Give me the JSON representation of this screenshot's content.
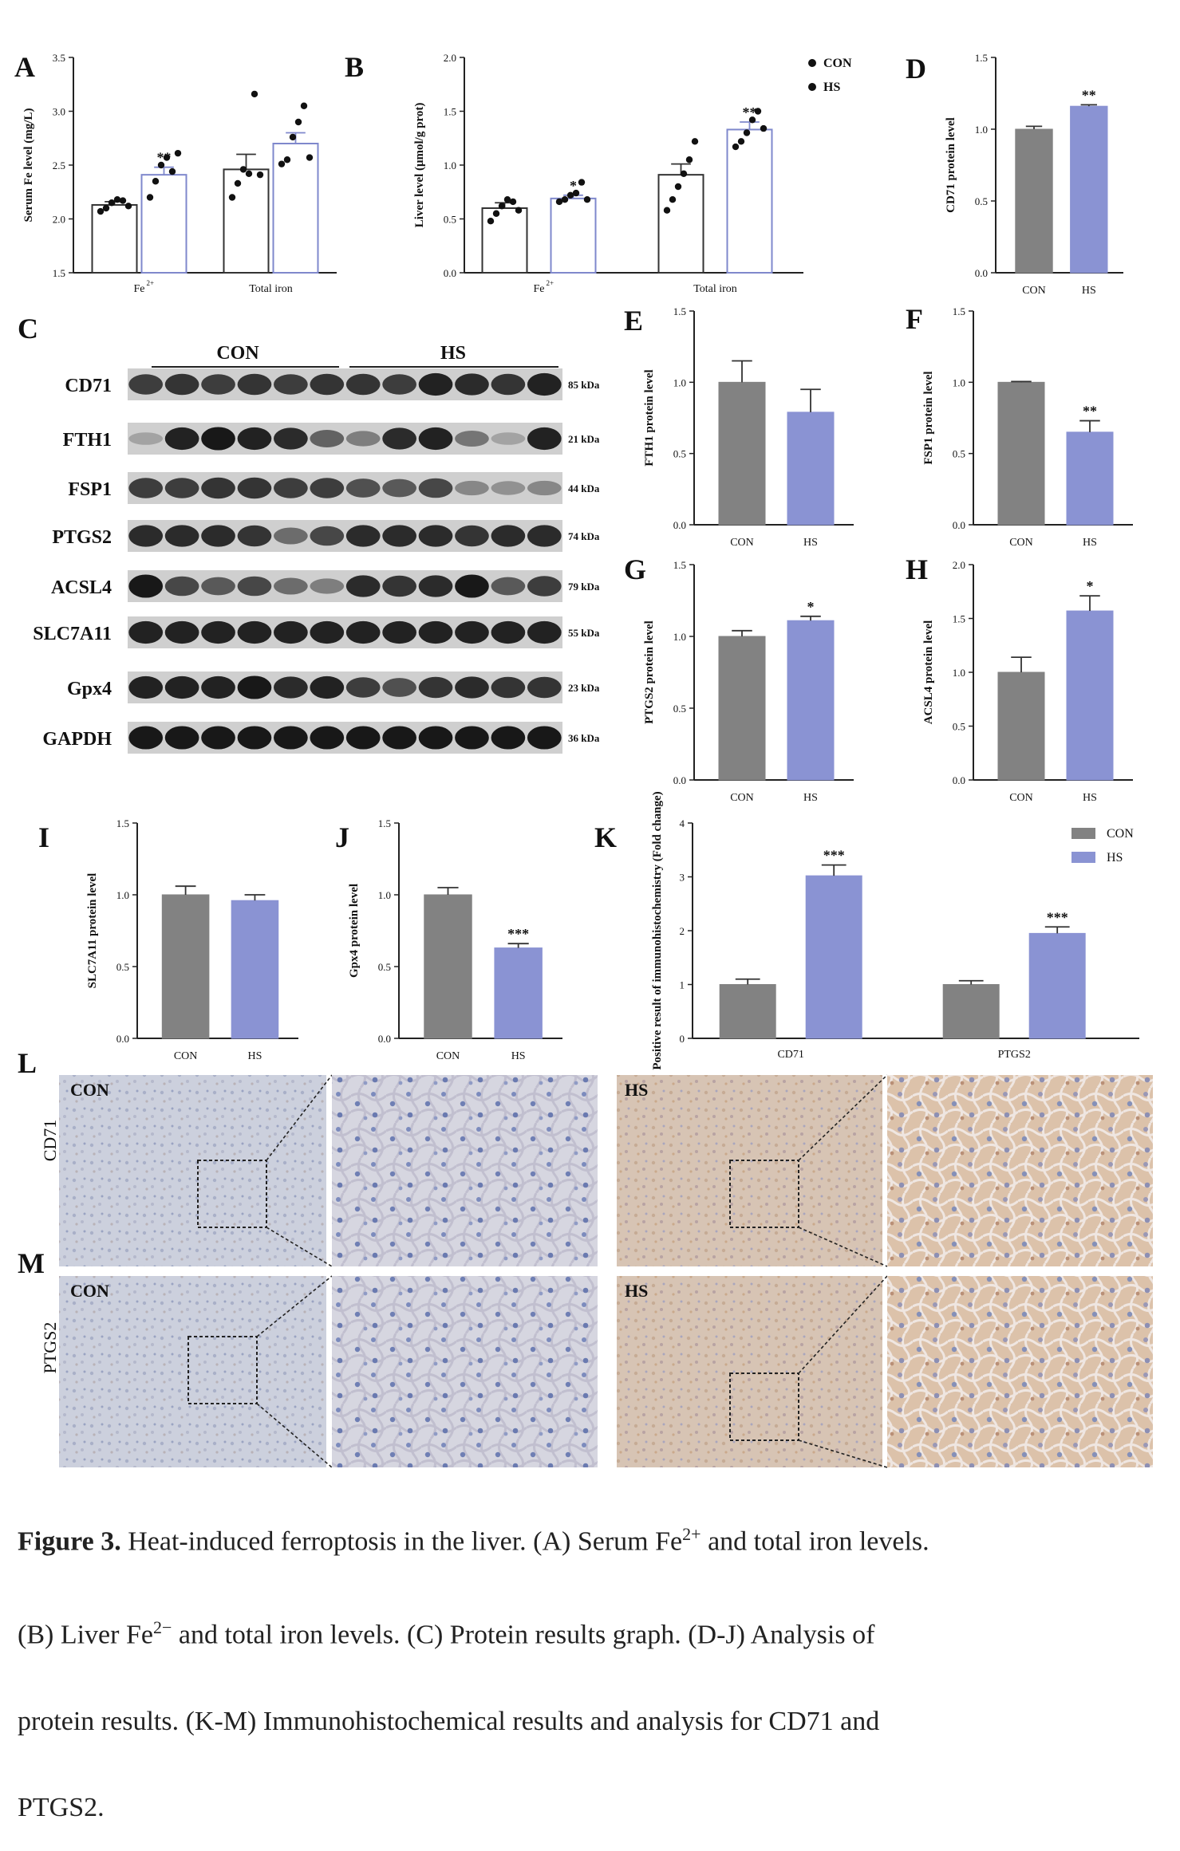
{
  "colors": {
    "con": "#828282",
    "hs": "#8a93d3",
    "hs_edge": "#7f88cc",
    "axis": "#222222"
  },
  "chart_data": [
    {
      "panel": "A",
      "type": "bar",
      "categories": [
        "Fe2+",
        "Total iron"
      ],
      "ylabel": "Serum Fe level (mg/L)",
      "ylim": [
        1.5,
        3.5
      ],
      "yticks": [
        1.5,
        2.0,
        2.5,
        3.0,
        3.5
      ],
      "series": [
        {
          "name": "CON",
          "values": [
            2.13,
            2.46
          ],
          "sem": [
            0.03,
            0.14
          ],
          "points": [
            [
              2.07,
              2.1,
              2.15,
              2.18,
              2.17,
              2.12
            ],
            [
              2.2,
              2.33,
              2.46,
              2.42,
              3.16,
              2.41
            ]
          ]
        },
        {
          "name": "HS",
          "values": [
            2.41,
            2.7
          ],
          "sem": [
            0.07,
            0.1
          ],
          "points": [
            [
              2.2,
              2.35,
              2.5,
              2.57,
              2.44,
              2.61
            ],
            [
              2.51,
              2.55,
              2.76,
              2.9,
              3.05,
              2.57
            ]
          ]
        }
      ],
      "annotations": [
        {
          "series": "HS",
          "category": "Fe2+",
          "text": "**"
        }
      ]
    },
    {
      "panel": "B",
      "type": "bar",
      "categories": [
        "Fe2+",
        "Total iron"
      ],
      "ylabel": "Liver level (μmol/g prot)",
      "ylim": [
        0,
        2.0
      ],
      "yticks": [
        0.0,
        0.5,
        1.0,
        1.5,
        2.0
      ],
      "legend": [
        "CON",
        "HS"
      ],
      "legend_position": "top-right",
      "series": [
        {
          "name": "CON",
          "values": [
            0.6,
            0.91
          ],
          "sem": [
            0.05,
            0.1
          ],
          "points": [
            [
              0.48,
              0.55,
              0.62,
              0.68,
              0.66,
              0.58
            ],
            [
              0.58,
              0.68,
              0.8,
              0.92,
              1.05,
              1.22
            ]
          ]
        },
        {
          "name": "HS",
          "values": [
            0.69,
            1.33
          ],
          "sem": [
            0.03,
            0.07
          ],
          "points": [
            [
              0.66,
              0.68,
              0.72,
              0.74,
              0.84,
              0.68
            ],
            [
              1.17,
              1.22,
              1.3,
              1.42,
              1.5,
              1.34
            ]
          ]
        }
      ],
      "annotations": [
        {
          "series": "HS",
          "category": "Fe2+",
          "text": "*"
        },
        {
          "series": "HS",
          "category": "Total iron",
          "text": "**"
        }
      ]
    },
    {
      "panel": "D",
      "type": "bar",
      "categories": [
        "CON",
        "HS"
      ],
      "ylabel": "CD71 protein level",
      "ylim": [
        0,
        1.5
      ],
      "yticks": [
        0.0,
        0.5,
        1.0,
        1.5
      ],
      "values": [
        1.0,
        1.16
      ],
      "sem": [
        0.02,
        0.01
      ],
      "annotations": [
        "",
        "**"
      ]
    },
    {
      "panel": "E",
      "type": "bar",
      "categories": [
        "CON",
        "HS"
      ],
      "ylabel": "FTH1 protein level",
      "ylim": [
        0,
        1.5
      ],
      "yticks": [
        0.0,
        0.5,
        1.0,
        1.5
      ],
      "values": [
        1.0,
        0.79
      ],
      "sem": [
        0.15,
        0.16
      ],
      "annotations": [
        "",
        ""
      ]
    },
    {
      "panel": "F",
      "type": "bar",
      "categories": [
        "CON",
        "HS"
      ],
      "ylabel": "FSP1 protein level",
      "ylim": [
        0,
        1.5
      ],
      "yticks": [
        0.0,
        0.5,
        1.0,
        1.5
      ],
      "values": [
        1.0,
        0.65
      ],
      "sem": [
        0.005,
        0.08
      ],
      "annotations": [
        "",
        "**"
      ]
    },
    {
      "panel": "G",
      "type": "bar",
      "categories": [
        "CON",
        "HS"
      ],
      "ylabel": "PTGS2 protein level",
      "ylim": [
        0,
        1.5
      ],
      "yticks": [
        0.0,
        0.5,
        1.0,
        1.5
      ],
      "values": [
        1.0,
        1.11
      ],
      "sem": [
        0.04,
        0.03
      ],
      "annotations": [
        "",
        "*"
      ]
    },
    {
      "panel": "H",
      "type": "bar",
      "categories": [
        "CON",
        "HS"
      ],
      "ylabel": "ACSL4 protein level",
      "ylim": [
        0,
        2.0
      ],
      "yticks": [
        0.0,
        0.5,
        1.0,
        1.5,
        2.0
      ],
      "values": [
        1.0,
        1.57
      ],
      "sem": [
        0.14,
        0.14
      ],
      "annotations": [
        "",
        "*"
      ]
    },
    {
      "panel": "I",
      "type": "bar",
      "categories": [
        "CON",
        "HS"
      ],
      "ylabel": "SLC7A11 protein level",
      "ylim": [
        0,
        1.5
      ],
      "yticks": [
        0.0,
        0.5,
        1.0,
        1.5
      ],
      "values": [
        1.0,
        0.96
      ],
      "sem": [
        0.06,
        0.04
      ],
      "annotations": [
        "",
        ""
      ]
    },
    {
      "panel": "J",
      "type": "bar",
      "categories": [
        "CON",
        "HS"
      ],
      "ylabel": "Gpx4 protein level",
      "ylim": [
        0,
        1.5
      ],
      "yticks": [
        0.0,
        0.5,
        1.0,
        1.5
      ],
      "values": [
        1.0,
        0.63
      ],
      "sem": [
        0.05,
        0.03
      ],
      "annotations": [
        "",
        "***"
      ]
    },
    {
      "panel": "K",
      "type": "bar",
      "categories": [
        "CD71",
        "PTGS2"
      ],
      "ylabel": "Positive result of immunohistochemistry (Fold change)",
      "ylim": [
        0,
        4
      ],
      "yticks": [
        0,
        1,
        2,
        3,
        4
      ],
      "legend": [
        "CON",
        "HS"
      ],
      "legend_position": "top-right",
      "series": [
        {
          "name": "CON",
          "values": [
            1.0,
            1.0
          ],
          "sem": [
            0.1,
            0.07
          ]
        },
        {
          "name": "HS",
          "values": [
            3.02,
            1.95
          ],
          "sem": [
            0.2,
            0.12
          ]
        }
      ],
      "annotations": [
        {
          "series": "HS",
          "category": "CD71",
          "text": "***"
        },
        {
          "series": "HS",
          "category": "PTGS2",
          "text": "***"
        }
      ]
    }
  ],
  "blot": {
    "panel": "C",
    "group_labels": [
      "CON",
      "HS"
    ],
    "rows": [
      {
        "name": "CD71",
        "size": "85 kDa",
        "intensities": [
          0.75,
          0.8,
          0.75,
          0.8,
          0.75,
          0.8,
          0.8,
          0.75,
          0.9,
          0.85,
          0.8,
          0.9
        ]
      },
      {
        "name": "FTH1",
        "size": "21 kDa",
        "intensities": [
          0.2,
          0.9,
          0.95,
          0.9,
          0.85,
          0.55,
          0.4,
          0.85,
          0.9,
          0.45,
          0.2,
          0.9
        ]
      },
      {
        "name": "FSP1",
        "size": "44 kDa",
        "intensities": [
          0.75,
          0.75,
          0.8,
          0.8,
          0.75,
          0.75,
          0.65,
          0.6,
          0.7,
          0.35,
          0.3,
          0.35
        ]
      },
      {
        "name": "PTGS2",
        "size": "74 kDa",
        "intensities": [
          0.85,
          0.85,
          0.85,
          0.8,
          0.5,
          0.7,
          0.85,
          0.85,
          0.85,
          0.8,
          0.85,
          0.85
        ]
      },
      {
        "name": "ACSL4",
        "size": "79 kDa",
        "intensities": [
          0.95,
          0.7,
          0.6,
          0.7,
          0.5,
          0.4,
          0.85,
          0.8,
          0.85,
          0.95,
          0.6,
          0.75
        ]
      },
      {
        "name": "SLC7A11",
        "size": "55 kDa",
        "intensities": [
          0.9,
          0.9,
          0.9,
          0.9,
          0.9,
          0.9,
          0.9,
          0.9,
          0.9,
          0.9,
          0.9,
          0.9
        ]
      },
      {
        "name": "Gpx4",
        "size": "23 kDa",
        "intensities": [
          0.9,
          0.9,
          0.9,
          0.95,
          0.85,
          0.9,
          0.75,
          0.65,
          0.8,
          0.85,
          0.8,
          0.8
        ]
      },
      {
        "name": "GAPDH",
        "size": "36 kDa",
        "intensities": [
          0.95,
          0.95,
          0.95,
          0.95,
          0.95,
          0.95,
          0.95,
          0.95,
          0.95,
          0.95,
          0.95,
          0.95
        ]
      }
    ]
  },
  "ihc": {
    "rows": [
      {
        "panel": "L",
        "row_label": "CD71",
        "left_label": "CON",
        "right_label": "HS"
      },
      {
        "panel": "M",
        "row_label": "PTGS2",
        "left_label": "CON",
        "right_label": "HS"
      }
    ]
  },
  "caption": {
    "figure_label": "Figure 3.",
    "line1": "Heat-induced ferroptosis in the liver. (A) Serum Fe",
    "line1_sup": "2+",
    "line1_end": " and total iron levels.",
    "line2_a": "(B) Liver Fe",
    "line2_sup": "2−",
    "line2_b": " and total iron levels. (C) Protein results graph. (D-J) Analysis of",
    "line3": "protein results. (K-M) Immunohistochemical results and analysis for CD71 and",
    "line4": "PTGS2."
  }
}
